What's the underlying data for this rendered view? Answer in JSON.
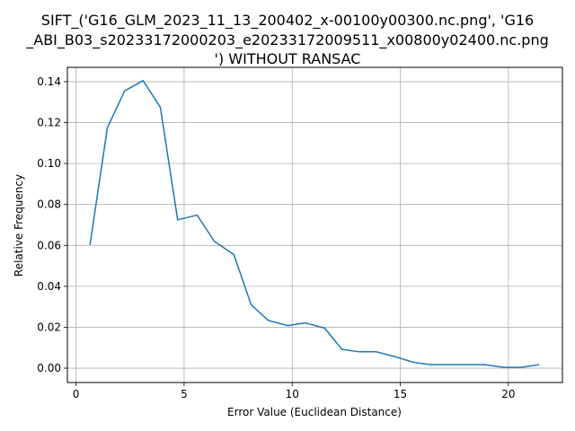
{
  "chart_data": {
    "type": "line",
    "title_lines": [
      "SIFT_('G16_GLM_2023_11_13_200402_x-00100y00300.nc.png', 'G16",
      "_ABI_B03_s20233172000203_e20233172009511_x00800y02400.nc.png",
      "') WITHOUT RANSAC"
    ],
    "xlabel": "Error Value (Euclidean Distance)",
    "ylabel": "Relative Frequency",
    "xlim": [
      -0.4,
      22.5
    ],
    "ylim": [
      -0.007,
      0.147
    ],
    "xticks": [
      0,
      5,
      10,
      15,
      20
    ],
    "xtick_labels": [
      "0",
      "5",
      "10",
      "15",
      "20"
    ],
    "yticks": [
      0.0,
      0.02,
      0.04,
      0.06,
      0.08,
      0.1,
      0.12,
      0.14
    ],
    "ytick_labels": [
      "0.00",
      "0.02",
      "0.04",
      "0.06",
      "0.08",
      "0.10",
      "0.12",
      "0.14"
    ],
    "grid": true,
    "series": [
      {
        "color": "#1f77b4",
        "x": [
          0.65,
          1.45,
          2.25,
          3.1,
          3.9,
          4.7,
          5.6,
          6.4,
          7.3,
          8.1,
          8.9,
          9.8,
          10.6,
          11.5,
          12.3,
          13.1,
          13.9,
          14.8,
          15.6,
          16.4,
          17.3,
          18.1,
          18.9,
          19.8,
          20.6,
          21.4
        ],
        "y": [
          0.0605,
          0.1175,
          0.1355,
          0.1405,
          0.1275,
          0.0725,
          0.0748,
          0.062,
          0.0555,
          0.031,
          0.0233,
          0.0208,
          0.0221,
          0.0196,
          0.0092,
          0.008,
          0.008,
          0.0055,
          0.0029,
          0.0017,
          0.0017,
          0.0017,
          0.0017,
          0.0004,
          0.0004,
          0.0017
        ]
      }
    ]
  }
}
